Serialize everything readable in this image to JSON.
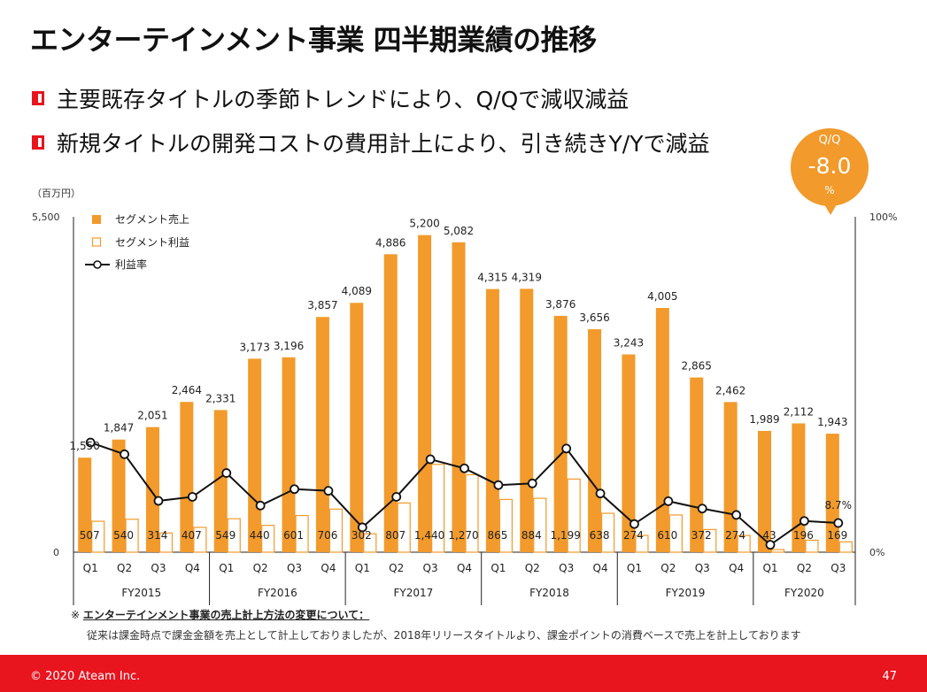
{
  "title": "エンターテインメント事業 四半期業績の推移",
  "bullets": [
    "主要既存タイトルの季節トレンドにより、Q/Qで減収減益",
    "新規タイトルの開発コストの費用計上により、引き続きY/Yで減益"
  ],
  "badge": {
    "label": "Q/Q",
    "value": "-8.0",
    "unit": "%"
  },
  "colors": {
    "orange": "#f29a2b",
    "red": "#e8141e"
  },
  "chart_data": {
    "type": "bar",
    "unit_label": "（百万円）",
    "left_axis": {
      "min": 0,
      "max": 5500,
      "tick_labels": [
        "5,500",
        "0"
      ]
    },
    "right_axis": {
      "min": 0,
      "max": 100,
      "tick_labels": [
        "100%",
        "0%"
      ]
    },
    "legend": {
      "placement": "top-left",
      "entries": [
        "セグメント売上",
        "セグメント利益",
        "利益率"
      ]
    },
    "quarters": [
      "Q1",
      "Q2",
      "Q3",
      "Q4",
      "Q1",
      "Q2",
      "Q3",
      "Q4",
      "Q1",
      "Q2",
      "Q3",
      "Q4",
      "Q1",
      "Q2",
      "Q3",
      "Q4",
      "Q1",
      "Q2",
      "Q3",
      "Q4",
      "Q1",
      "Q2",
      "Q3"
    ],
    "fiscal_years": [
      {
        "label": "FY2015",
        "count": 4
      },
      {
        "label": "FY2016",
        "count": 4
      },
      {
        "label": "FY2017",
        "count": 4
      },
      {
        "label": "FY2018",
        "count": 4
      },
      {
        "label": "FY2019",
        "count": 4
      },
      {
        "label": "FY2020",
        "count": 3
      }
    ],
    "series": [
      {
        "name": "セグメント売上",
        "values": [
          1550,
          1847,
          2051,
          2464,
          2331,
          3173,
          3196,
          3857,
          4089,
          4886,
          5200,
          5082,
          4315,
          4319,
          3876,
          3656,
          3243,
          4005,
          2865,
          2462,
          1989,
          2112,
          1943
        ],
        "labels": [
          "1,550",
          "1,847",
          "2,051",
          "2,464",
          "2,331",
          "3,173",
          "3,196",
          "3,857",
          "4,089",
          "4,886",
          "5,200",
          "5,082",
          "4,315",
          "4,319",
          "3,876",
          "3,656",
          "3,243",
          "4,005",
          "2,865",
          "2,462",
          "1,989",
          "2,112",
          "1,943"
        ]
      },
      {
        "name": "セグメント利益",
        "values": [
          507,
          540,
          314,
          407,
          549,
          440,
          601,
          706,
          302,
          807,
          1440,
          1270,
          865,
          884,
          1199,
          638,
          274,
          610,
          372,
          274,
          43,
          196,
          169
        ],
        "labels": [
          "507",
          "540",
          "314",
          "407",
          "549",
          "440",
          "601",
          "706",
          "302",
          "807",
          "1,440",
          "1,270",
          "865",
          "884",
          "1,199",
          "638",
          "274",
          "610",
          "372",
          "274",
          "43",
          "196",
          "169"
        ]
      },
      {
        "name": "利益率",
        "values": [
          32.7,
          29.2,
          15.3,
          16.5,
          23.6,
          13.9,
          18.8,
          18.3,
          7.4,
          16.5,
          27.7,
          25.0,
          20.0,
          20.5,
          30.9,
          17.5,
          8.4,
          15.2,
          13.0,
          11.1,
          2.2,
          9.3,
          8.7
        ]
      }
    ],
    "annotations": [
      "8.7%"
    ]
  },
  "note": {
    "heading_mark": "※",
    "heading": "エンターテインメント事業の売上計上方法の変更について：",
    "body": "従来は課金時点で課金金額を売上として計上しておりましたが、2018年リリースタイトルより、課金ポイントの消費ベースで売上を計上しております"
  },
  "footer": {
    "copyright": "© 2020 Ateam Inc.",
    "page": "47"
  }
}
